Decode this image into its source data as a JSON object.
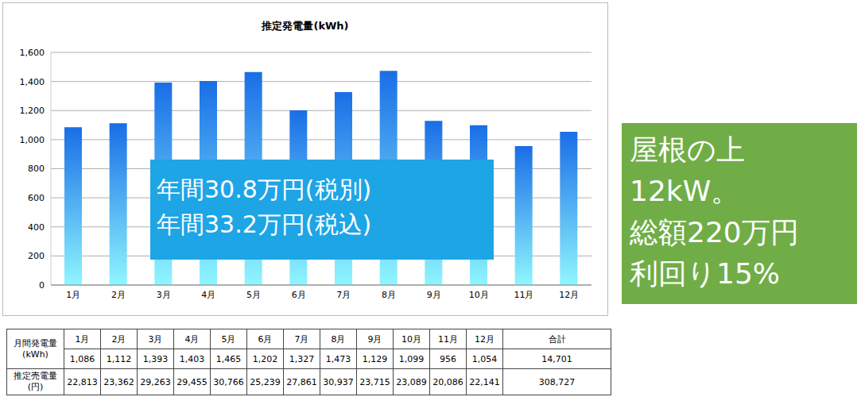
{
  "chart_data": {
    "type": "bar",
    "title": "推定発電量(kWh)",
    "categories": [
      "1月",
      "2月",
      "3月",
      "4月",
      "5月",
      "6月",
      "7月",
      "8月",
      "9月",
      "10月",
      "11月",
      "12月"
    ],
    "values": [
      1086,
      1112,
      1393,
      1403,
      1465,
      1202,
      1327,
      1473,
      1129,
      1099,
      956,
      1054
    ],
    "color": "#1a6ee6",
    "ylim": [
      0,
      1600
    ],
    "yticks": [
      0,
      200,
      400,
      600,
      800,
      {
        "value": 1000,
        "label": "1,000"
      },
      {
        "value": 1200,
        "label": "1,200"
      },
      {
        "value": 1400,
        "label": "1,400"
      },
      {
        "value": 1600,
        "label": "1,600"
      }
    ],
    "grid": true,
    "annotations": [
      "年間30.8万円(税別)",
      "年間33.2万円(税込)"
    ]
  },
  "side_panel": {
    "lines": [
      "屋根の上",
      "12kW。",
      "総額220万円",
      "利回り15%"
    ]
  },
  "table": {
    "columns": [
      "1月",
      "2月",
      "3月",
      "4月",
      "5月",
      "6月",
      "7月",
      "8月",
      "9月",
      "10月",
      "11月",
      "12月",
      "合計"
    ],
    "rows": [
      {
        "label": "月間発電量(kWh)",
        "values": [
          "1,086",
          "1,112",
          "1,393",
          "1,403",
          "1,465",
          "1,202",
          "1,327",
          "1,473",
          "1,129",
          "1,099",
          "956",
          "1,054",
          "14,701"
        ]
      },
      {
        "label": "推定売電量(円)",
        "values": [
          "22,813",
          "23,362",
          "29,263",
          "29,455",
          "30,766",
          "25,239",
          "27,861",
          "30,937",
          "23,715",
          "23,089",
          "20,086",
          "22,141",
          "308,727"
        ]
      }
    ]
  }
}
